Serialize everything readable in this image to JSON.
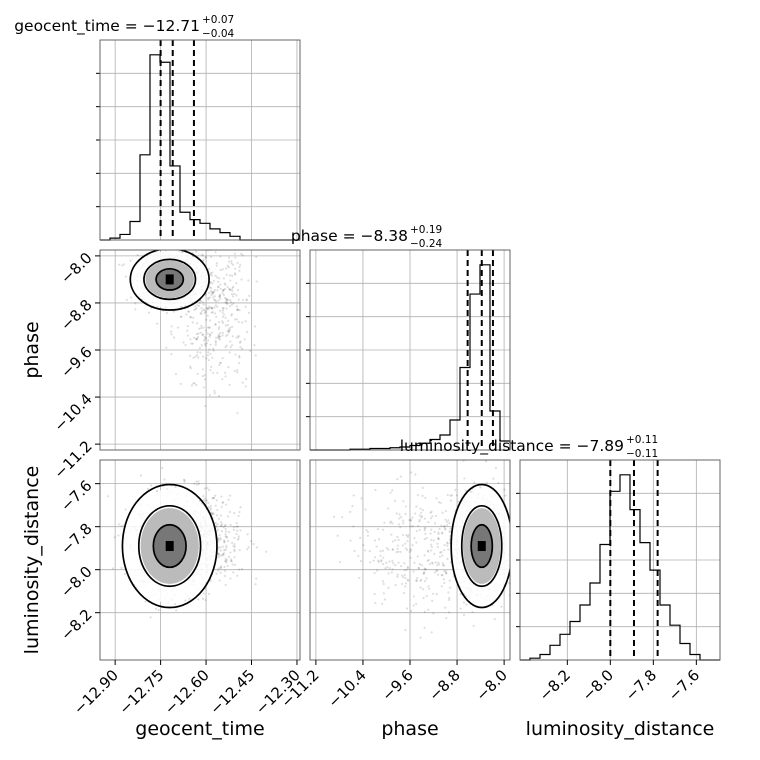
{
  "chart_data": {
    "type": "corner",
    "parameters": [
      "geocent_time",
      "phase",
      "luminosity_distance"
    ],
    "axis_labels": {
      "geocent_time": "geocent_time",
      "phase": "phase",
      "luminosity_distance": "luminosity_distance"
    },
    "titles": [
      {
        "param": "geocent_time",
        "text": "geocent_time = −12.71",
        "plus": "+0.07",
        "minus": "−0.04"
      },
      {
        "param": "phase",
        "text": "phase = −8.38",
        "plus": "+0.19",
        "minus": "−0.24"
      },
      {
        "param": "luminosity_distance",
        "text": "luminosity_distance = −7.89",
        "plus": "+0.11",
        "minus": "−0.11"
      }
    ],
    "ranges": {
      "geocent_time": [
        -12.95,
        -12.29
      ],
      "phase": [
        -11.3,
        -7.9
      ],
      "luminosity_distance": [
        -8.42,
        -7.49
      ]
    },
    "ticks": {
      "geocent_time": [
        {
          "v": -12.9,
          "label": "−12.90"
        },
        {
          "v": -12.75,
          "label": "−12.75"
        },
        {
          "v": -12.6,
          "label": "−12.60"
        },
        {
          "v": -12.45,
          "label": "−12.45"
        },
        {
          "v": -12.3,
          "label": "−12.30"
        }
      ],
      "phase": [
        {
          "v": -11.2,
          "label": "−11.2"
        },
        {
          "v": -10.4,
          "label": "−10.4"
        },
        {
          "v": -9.6,
          "label": "−9.6"
        },
        {
          "v": -8.8,
          "label": "−8.8"
        },
        {
          "v": -8.0,
          "label": "−8.0"
        }
      ],
      "luminosity_distance": [
        {
          "v": -8.2,
          "label": "−8.2"
        },
        {
          "v": -8.0,
          "label": "−8.0"
        },
        {
          "v": -7.8,
          "label": "−7.8"
        },
        {
          "v": -7.6,
          "label": "−7.6"
        }
      ]
    },
    "quantiles": {
      "geocent_time": [
        -12.75,
        -12.71,
        -12.64
      ],
      "phase": [
        -8.62,
        -8.38,
        -8.19
      ],
      "luminosity_distance": [
        -8.0,
        -7.89,
        -7.78
      ]
    },
    "histograms": {
      "geocent_time": {
        "edges": [
          -12.95,
          -12.917,
          -12.884,
          -12.851,
          -12.818,
          -12.785,
          -12.752,
          -12.719,
          -12.686,
          -12.653,
          -12.62,
          -12.587,
          -12.554,
          -12.521,
          -12.488,
          -12.455,
          -12.422,
          -12.389,
          -12.356,
          -12.323,
          -12.29
        ],
        "counts": [
          0,
          0.1,
          0.3,
          1,
          4.6,
          10,
          9.6,
          4,
          1.5,
          1.1,
          0.9,
          0.6,
          0.4,
          0.2,
          0,
          0,
          0,
          0,
          0,
          0
        ]
      },
      "phase": {
        "edges": [
          -11.3,
          -11.13,
          -10.96,
          -10.79,
          -10.62,
          -10.45,
          -10.28,
          -10.11,
          -9.94,
          -9.77,
          -9.6,
          -9.43,
          -9.26,
          -9.09,
          -8.92,
          -8.75,
          -8.58,
          -8.41,
          -8.24,
          -8.07,
          -7.9
        ],
        "counts": [
          0,
          0,
          0,
          0,
          0.1,
          0.1,
          0.2,
          0.2,
          0.3,
          0.4,
          0.6,
          0.9,
          1.4,
          2,
          4,
          11,
          20.8,
          24.7,
          5.2,
          1.2
        ]
      },
      "luminosity_distance": {
        "edges": [
          -8.42,
          -8.3735,
          -8.327,
          -8.2805,
          -8.234,
          -8.1875,
          -8.141,
          -8.0945,
          -8.048,
          -8.0015,
          -7.955,
          -7.9085,
          -7.862,
          -7.8155,
          -7.769,
          -7.7225,
          -7.676,
          -7.6295,
          -7.583,
          -7.5365,
          -7.49
        ],
        "counts": [
          0,
          0.1,
          0.3,
          0.8,
          1.4,
          2.1,
          3,
          4.2,
          6.3,
          9.2,
          10.1,
          8.2,
          6.4,
          4.9,
          3,
          1.9,
          0.9,
          0.3,
          0,
          0
        ]
      }
    },
    "scatter_pairs": [
      {
        "x": "geocent_time",
        "y": "phase",
        "center": [
          -12.72,
          -8.4
        ],
        "sd": [
          0.05,
          0.2
        ],
        "tail_center": [
          -12.58,
          -8.9
        ],
        "tail_sd": [
          0.06,
          0.6
        ]
      },
      {
        "x": "geocent_time",
        "y": "luminosity_distance",
        "center": [
          -12.72,
          -7.89
        ],
        "sd": [
          0.06,
          0.11
        ],
        "tail_center": [
          -12.6,
          -7.86
        ],
        "tail_sd": [
          0.06,
          0.1
        ]
      },
      {
        "x": "phase",
        "y": "luminosity_distance",
        "center": [
          -8.38,
          -7.89
        ],
        "sd": [
          0.2,
          0.11
        ],
        "tail_center": [
          -9.3,
          -7.9
        ],
        "tail_sd": [
          0.6,
          0.14
        ]
      }
    ],
    "grid": true
  }
}
